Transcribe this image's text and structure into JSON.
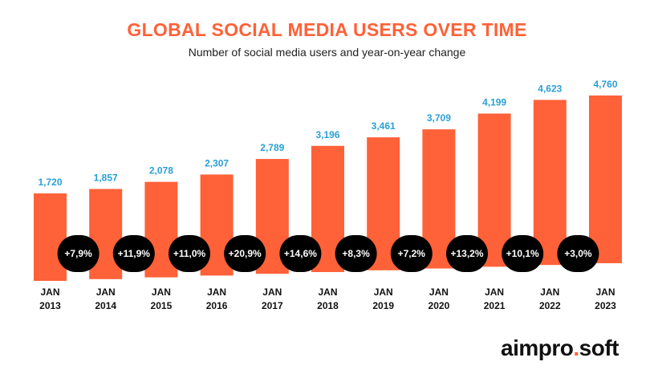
{
  "chart_data": {
    "type": "bar",
    "title": "GLOBAL SOCIAL MEDIA USERS OVER TIME",
    "subtitle": "Number of social media users and year-on-year change",
    "categories": [
      [
        "JAN",
        "2013"
      ],
      [
        "JAN",
        "2014"
      ],
      [
        "JAN",
        "2015"
      ],
      [
        "JAN",
        "2016"
      ],
      [
        "JAN",
        "2017"
      ],
      [
        "JAN",
        "2018"
      ],
      [
        "JAN",
        "2019"
      ],
      [
        "JAN",
        "2020"
      ],
      [
        "JAN",
        "2021"
      ],
      [
        "JAN",
        "2022"
      ],
      [
        "JAN",
        "2023"
      ]
    ],
    "values": [
      1720,
      1857,
      2078,
      2307,
      2789,
      3196,
      3461,
      3709,
      4199,
      4623,
      4760
    ],
    "value_labels": [
      "1,720",
      "1,857",
      "2,078",
      "2,307",
      "2,789",
      "3,196",
      "3,461",
      "3,709",
      "4,199",
      "4,623",
      "4,760"
    ],
    "yoy_change_labels": [
      "+7,9%",
      "+11,9%",
      "+11,0%",
      "+20,9%",
      "+14,6%",
      "+8,3%",
      "+7,2%",
      "+13,2%",
      "+10,1%",
      "+3,0%"
    ],
    "colors": {
      "bar": "#ff6138",
      "value_label": "#2aa0d4",
      "change_badge": "#000000",
      "title": "#ff6138"
    },
    "grid": false,
    "legend": "none"
  },
  "brand": {
    "name": "aimpro",
    "dot": ".",
    "suffix": "soft"
  }
}
